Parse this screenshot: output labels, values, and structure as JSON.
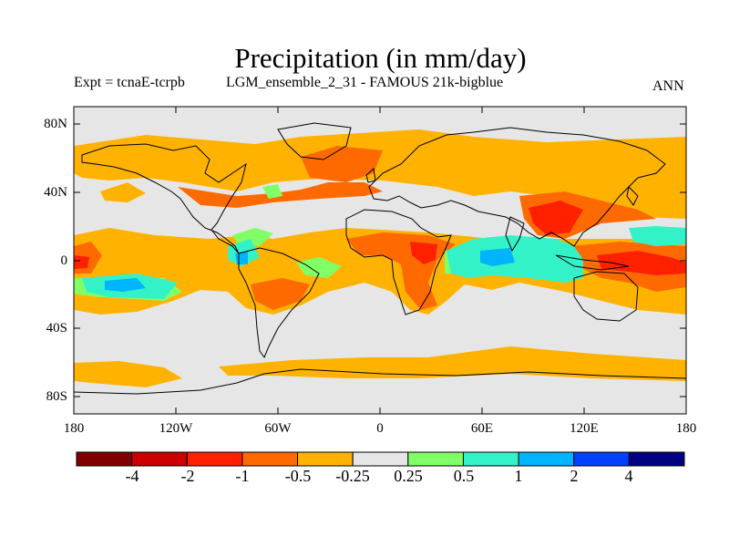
{
  "title": "Precipitation (in mm/day)",
  "subtitle_left": "Expt = tcnaE-tcrpb",
  "subtitle_center": "LGM_ensemble_2_31 - FAMOUS 21k-bigblue",
  "subtitle_right": "ANN",
  "map": {
    "lat_ticks": [
      "80N",
      "40N",
      "0",
      "40S",
      "80S"
    ],
    "lon_ticks": [
      "180",
      "120W",
      "60W",
      "0",
      "60E",
      "120E",
      "180"
    ],
    "background_color": "#e6e6e6",
    "coastline_color": "#000000"
  },
  "colorbar": {
    "colors": [
      "#7f0000",
      "#cc0000",
      "#ff2000",
      "#ff6a00",
      "#ffb300",
      "#e6e6e6",
      "#80ff66",
      "#33f2c8",
      "#00b4ff",
      "#0040ff",
      "#000080"
    ],
    "labels": [
      "-4",
      "-2",
      "-1",
      "-0.5",
      "-0.25",
      "0.25",
      "0.5",
      "1",
      "2",
      "4"
    ]
  }
}
